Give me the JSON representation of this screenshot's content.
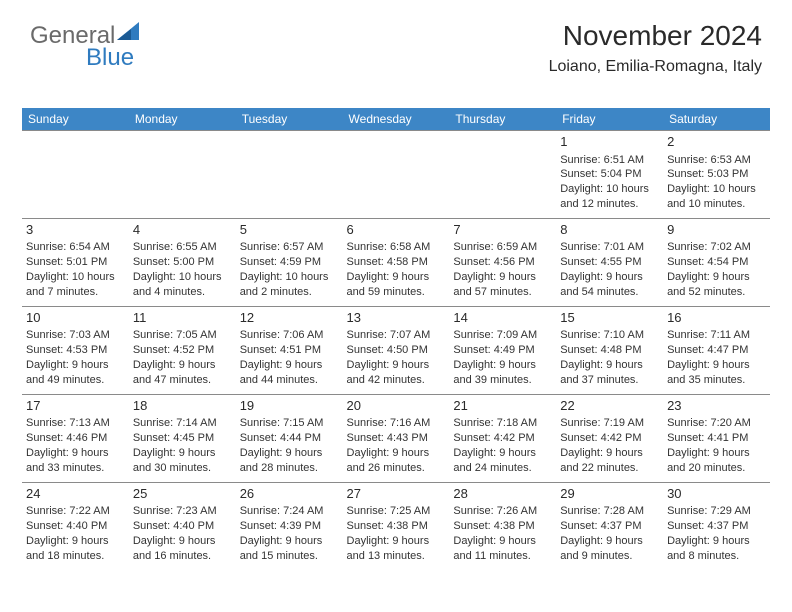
{
  "logo": {
    "text_gray": "General",
    "text_blue": "Blue"
  },
  "header": {
    "title": "November 2024",
    "location": "Loiano, Emilia-Romagna, Italy"
  },
  "colors": {
    "header_bg": "#3d86c6",
    "header_text": "#ffffff",
    "border": "#8a8a8a",
    "body_text": "#333333",
    "daynum": "#2a2a2a",
    "logo_gray": "#6a6a6a",
    "logo_blue": "#2f7bbf"
  },
  "weekdays": [
    "Sunday",
    "Monday",
    "Tuesday",
    "Wednesday",
    "Thursday",
    "Friday",
    "Saturday"
  ],
  "grid": [
    [
      null,
      null,
      null,
      null,
      null,
      {
        "n": "1",
        "sr": "Sunrise: 6:51 AM",
        "ss": "Sunset: 5:04 PM",
        "dl": "Daylight: 10 hours and 12 minutes."
      },
      {
        "n": "2",
        "sr": "Sunrise: 6:53 AM",
        "ss": "Sunset: 5:03 PM",
        "dl": "Daylight: 10 hours and 10 minutes."
      }
    ],
    [
      {
        "n": "3",
        "sr": "Sunrise: 6:54 AM",
        "ss": "Sunset: 5:01 PM",
        "dl": "Daylight: 10 hours and 7 minutes."
      },
      {
        "n": "4",
        "sr": "Sunrise: 6:55 AM",
        "ss": "Sunset: 5:00 PM",
        "dl": "Daylight: 10 hours and 4 minutes."
      },
      {
        "n": "5",
        "sr": "Sunrise: 6:57 AM",
        "ss": "Sunset: 4:59 PM",
        "dl": "Daylight: 10 hours and 2 minutes."
      },
      {
        "n": "6",
        "sr": "Sunrise: 6:58 AM",
        "ss": "Sunset: 4:58 PM",
        "dl": "Daylight: 9 hours and 59 minutes."
      },
      {
        "n": "7",
        "sr": "Sunrise: 6:59 AM",
        "ss": "Sunset: 4:56 PM",
        "dl": "Daylight: 9 hours and 57 minutes."
      },
      {
        "n": "8",
        "sr": "Sunrise: 7:01 AM",
        "ss": "Sunset: 4:55 PM",
        "dl": "Daylight: 9 hours and 54 minutes."
      },
      {
        "n": "9",
        "sr": "Sunrise: 7:02 AM",
        "ss": "Sunset: 4:54 PM",
        "dl": "Daylight: 9 hours and 52 minutes."
      }
    ],
    [
      {
        "n": "10",
        "sr": "Sunrise: 7:03 AM",
        "ss": "Sunset: 4:53 PM",
        "dl": "Daylight: 9 hours and 49 minutes."
      },
      {
        "n": "11",
        "sr": "Sunrise: 7:05 AM",
        "ss": "Sunset: 4:52 PM",
        "dl": "Daylight: 9 hours and 47 minutes."
      },
      {
        "n": "12",
        "sr": "Sunrise: 7:06 AM",
        "ss": "Sunset: 4:51 PM",
        "dl": "Daylight: 9 hours and 44 minutes."
      },
      {
        "n": "13",
        "sr": "Sunrise: 7:07 AM",
        "ss": "Sunset: 4:50 PM",
        "dl": "Daylight: 9 hours and 42 minutes."
      },
      {
        "n": "14",
        "sr": "Sunrise: 7:09 AM",
        "ss": "Sunset: 4:49 PM",
        "dl": "Daylight: 9 hours and 39 minutes."
      },
      {
        "n": "15",
        "sr": "Sunrise: 7:10 AM",
        "ss": "Sunset: 4:48 PM",
        "dl": "Daylight: 9 hours and 37 minutes."
      },
      {
        "n": "16",
        "sr": "Sunrise: 7:11 AM",
        "ss": "Sunset: 4:47 PM",
        "dl": "Daylight: 9 hours and 35 minutes."
      }
    ],
    [
      {
        "n": "17",
        "sr": "Sunrise: 7:13 AM",
        "ss": "Sunset: 4:46 PM",
        "dl": "Daylight: 9 hours and 33 minutes."
      },
      {
        "n": "18",
        "sr": "Sunrise: 7:14 AM",
        "ss": "Sunset: 4:45 PM",
        "dl": "Daylight: 9 hours and 30 minutes."
      },
      {
        "n": "19",
        "sr": "Sunrise: 7:15 AM",
        "ss": "Sunset: 4:44 PM",
        "dl": "Daylight: 9 hours and 28 minutes."
      },
      {
        "n": "20",
        "sr": "Sunrise: 7:16 AM",
        "ss": "Sunset: 4:43 PM",
        "dl": "Daylight: 9 hours and 26 minutes."
      },
      {
        "n": "21",
        "sr": "Sunrise: 7:18 AM",
        "ss": "Sunset: 4:42 PM",
        "dl": "Daylight: 9 hours and 24 minutes."
      },
      {
        "n": "22",
        "sr": "Sunrise: 7:19 AM",
        "ss": "Sunset: 4:42 PM",
        "dl": "Daylight: 9 hours and 22 minutes."
      },
      {
        "n": "23",
        "sr": "Sunrise: 7:20 AM",
        "ss": "Sunset: 4:41 PM",
        "dl": "Daylight: 9 hours and 20 minutes."
      }
    ],
    [
      {
        "n": "24",
        "sr": "Sunrise: 7:22 AM",
        "ss": "Sunset: 4:40 PM",
        "dl": "Daylight: 9 hours and 18 minutes."
      },
      {
        "n": "25",
        "sr": "Sunrise: 7:23 AM",
        "ss": "Sunset: 4:40 PM",
        "dl": "Daylight: 9 hours and 16 minutes."
      },
      {
        "n": "26",
        "sr": "Sunrise: 7:24 AM",
        "ss": "Sunset: 4:39 PM",
        "dl": "Daylight: 9 hours and 15 minutes."
      },
      {
        "n": "27",
        "sr": "Sunrise: 7:25 AM",
        "ss": "Sunset: 4:38 PM",
        "dl": "Daylight: 9 hours and 13 minutes."
      },
      {
        "n": "28",
        "sr": "Sunrise: 7:26 AM",
        "ss": "Sunset: 4:38 PM",
        "dl": "Daylight: 9 hours and 11 minutes."
      },
      {
        "n": "29",
        "sr": "Sunrise: 7:28 AM",
        "ss": "Sunset: 4:37 PM",
        "dl": "Daylight: 9 hours and 9 minutes."
      },
      {
        "n": "30",
        "sr": "Sunrise: 7:29 AM",
        "ss": "Sunset: 4:37 PM",
        "dl": "Daylight: 9 hours and 8 minutes."
      }
    ]
  ]
}
